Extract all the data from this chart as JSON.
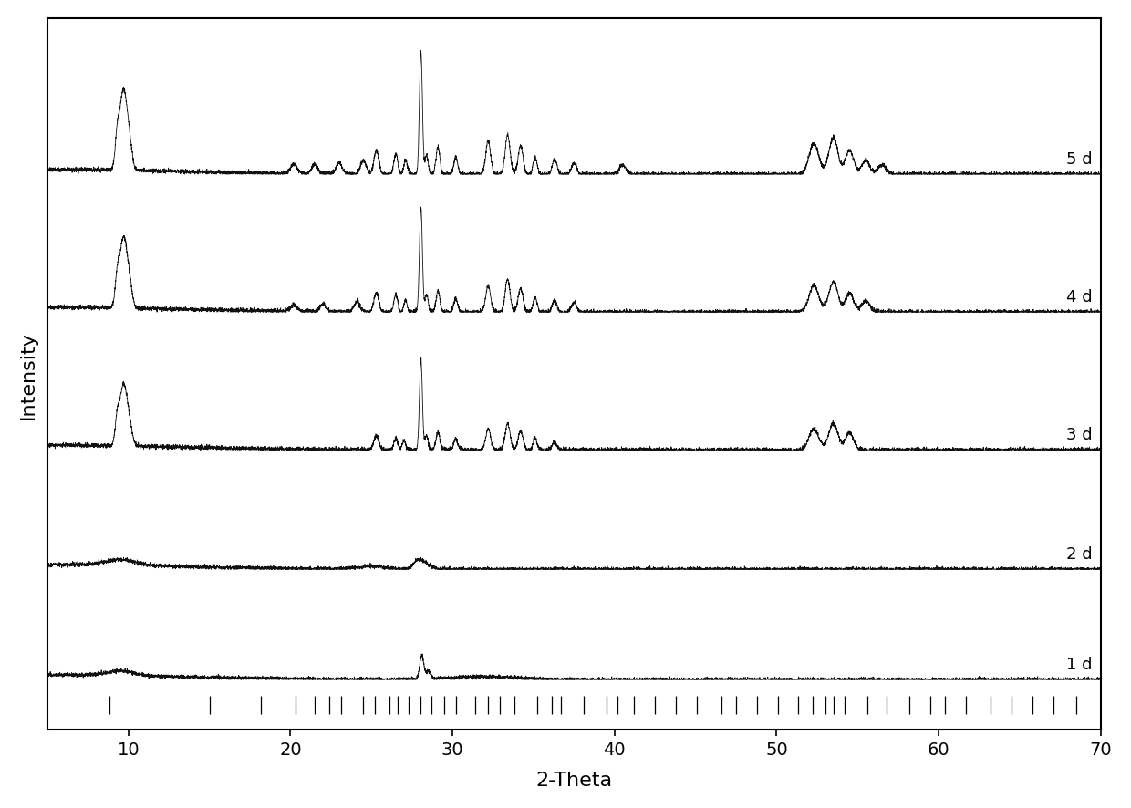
{
  "x_min": 5,
  "x_max": 70,
  "xlabel": "2-Theta",
  "ylabel": "Intensity",
  "labels": [
    "1 d",
    "2 d",
    "3 d",
    "4 d",
    "5 d"
  ],
  "offsets": [
    0.0,
    1.2,
    2.5,
    4.0,
    5.5
  ],
  "xticks": [
    10,
    20,
    30,
    40,
    50,
    60,
    70
  ],
  "background_color": "#ffffff",
  "line_color": "#111111",
  "tick_positions": [
    8.85,
    15.0,
    18.2,
    20.3,
    21.5,
    22.4,
    23.1,
    24.5,
    25.2,
    26.1,
    26.6,
    27.3,
    28.0,
    28.7,
    29.5,
    30.2,
    31.4,
    32.2,
    32.9,
    33.8,
    35.2,
    36.1,
    36.7,
    38.1,
    39.5,
    40.2,
    41.2,
    42.5,
    43.8,
    45.1,
    46.6,
    47.5,
    48.8,
    50.1,
    51.3,
    52.2,
    53.0,
    53.5,
    54.2,
    55.6,
    56.8,
    58.2,
    59.5,
    60.4,
    61.7,
    63.2,
    64.5,
    65.8,
    67.1,
    68.5
  ]
}
